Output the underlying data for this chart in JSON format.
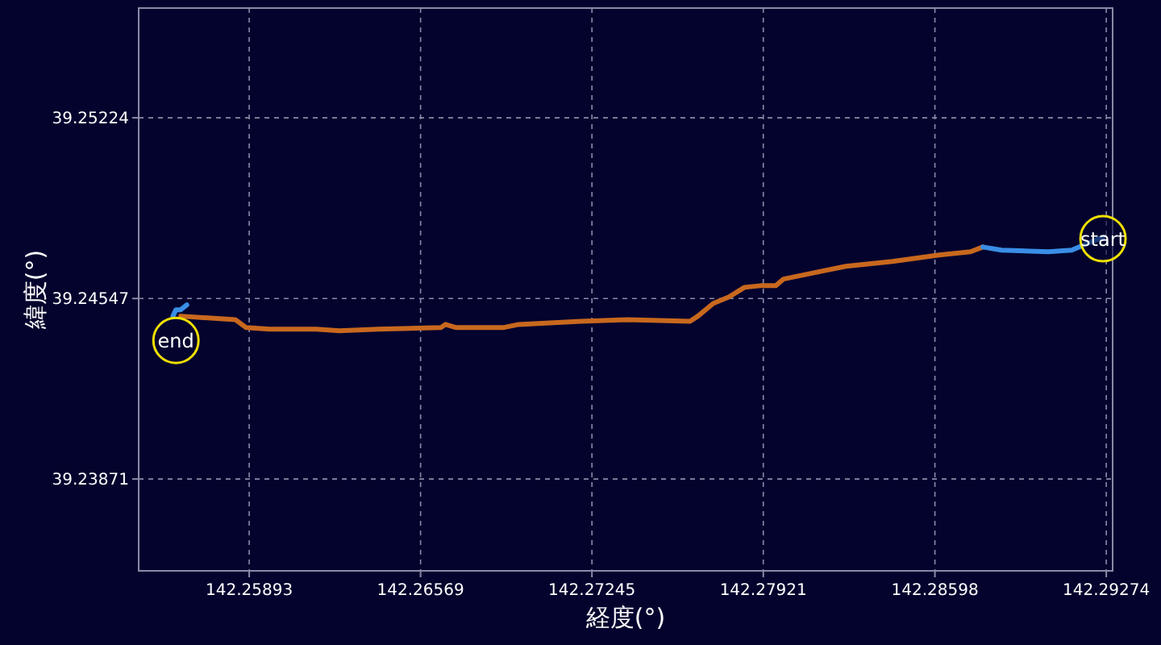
{
  "chart_data": {
    "type": "line",
    "xlabel": "経度(°)",
    "ylabel": "緯度(°)",
    "xlim": [
      142.25457,
      142.29299
    ],
    "ylim": [
      39.23527,
      39.25635
    ],
    "xticks": [
      142.25893,
      142.26569,
      142.27245,
      142.27921,
      142.28598,
      142.29274
    ],
    "yticks": [
      39.23871,
      39.24547,
      39.25224
    ],
    "grid": true,
    "line_style": "solid",
    "series": [
      {
        "color": "#c8681e",
        "x": [
          142.25623,
          142.25838,
          142.25881,
          142.25973,
          142.26157,
          142.26249,
          142.26403,
          142.26649,
          142.26667,
          142.2671,
          142.26895,
          142.26956,
          142.27202,
          142.27386,
          142.27632,
          142.27663,
          142.27724,
          142.27786,
          142.27847,
          142.27909,
          142.2797,
          142.28001,
          142.28124,
          142.28247,
          142.28431,
          142.28615,
          142.28738,
          142.28787
        ],
        "values": [
          39.24481,
          39.24468,
          39.24438,
          39.24432,
          39.24432,
          39.24426,
          39.24432,
          39.24438,
          39.2445,
          39.24438,
          39.24438,
          39.2445,
          39.24462,
          39.24468,
          39.24462,
          39.24481,
          39.24529,
          39.24553,
          39.24589,
          39.24595,
          39.24595,
          39.2462,
          39.24644,
          39.24668,
          39.24686,
          39.2471,
          39.24722,
          39.2474
        ]
      },
      {
        "color": "#3a8ee6",
        "x": [
          142.28787,
          142.28861,
          142.29045,
          142.29138,
          142.29199,
          142.29261
        ],
        "values": [
          39.2474,
          39.24728,
          39.24722,
          39.24728,
          39.24753,
          39.24777
        ]
      },
      {
        "color": "#3a8ee6",
        "x": [
          142.25592,
          142.25604,
          142.25623,
          142.25647
        ],
        "values": [
          39.24481,
          39.24505,
          39.24505,
          39.24523
        ]
      }
    ],
    "annotations": [
      {
        "text": "start",
        "x": 142.29261,
        "y": 39.24771
      },
      {
        "text": "end",
        "x": 142.25604,
        "y": 39.2439
      }
    ]
  }
}
